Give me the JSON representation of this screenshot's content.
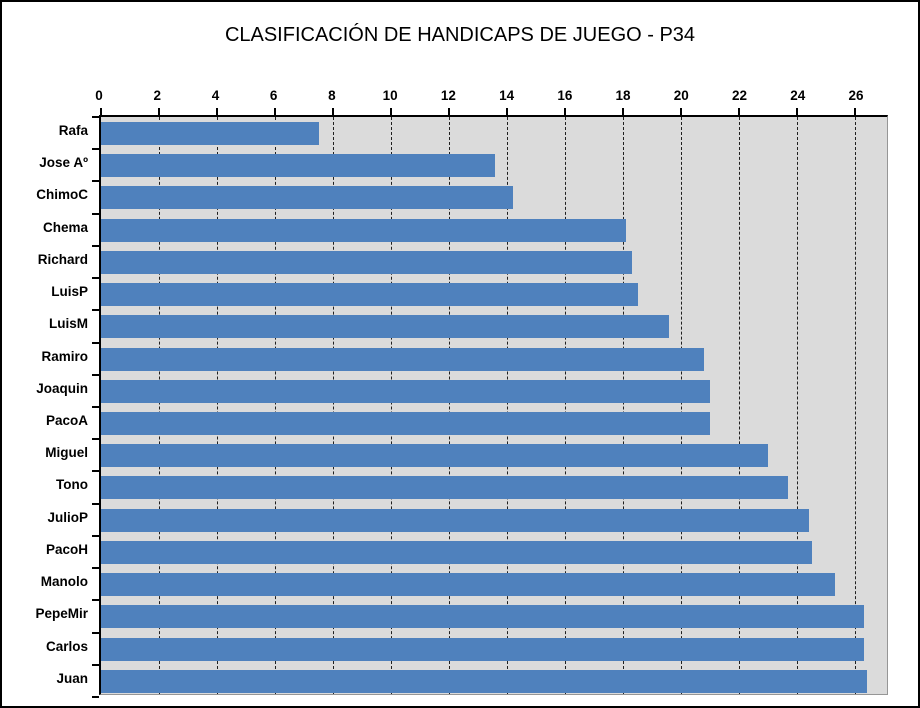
{
  "chart_title": "CLASIFICACIÓN DE HANDICAPS DE JUEGO - P34",
  "chart_data": {
    "type": "bar",
    "orientation": "horizontal",
    "title": "CLASIFICACIÓN DE HANDICAPS DE JUEGO - P34",
    "categories": [
      "Rafa",
      "Jose Aº",
      "ChimoC",
      "Chema",
      "Richard",
      "LuisP",
      "LuisM",
      "Ramiro",
      "Joaquin",
      "PacoA",
      "Miguel",
      "Tono",
      "JulioP",
      "PacoH",
      "Manolo",
      "PepeMir",
      "Carlos",
      "Juan"
    ],
    "values": [
      7.5,
      13.6,
      14.2,
      18.1,
      18.3,
      18.5,
      19.6,
      20.8,
      21,
      21,
      23,
      23.7,
      24.4,
      24.5,
      25.3,
      26.3,
      26.3,
      26.4
    ],
    "x_ticks": [
      0,
      2,
      4,
      6,
      8,
      10,
      12,
      14,
      16,
      18,
      20,
      22,
      24,
      26
    ],
    "xlim": [
      0,
      26
    ],
    "plot_xmax": 27.1,
    "xlabel": "",
    "ylabel": "",
    "grid": "dashed-vertical-major",
    "legend": "none",
    "colors": {
      "bar": "#4F81BD",
      "plot_bg": "#DBDBDB",
      "grid": "#000000",
      "axis": "#000000",
      "chart_border": "#000000",
      "background": "#FFFFFF",
      "text": "#000000"
    }
  }
}
